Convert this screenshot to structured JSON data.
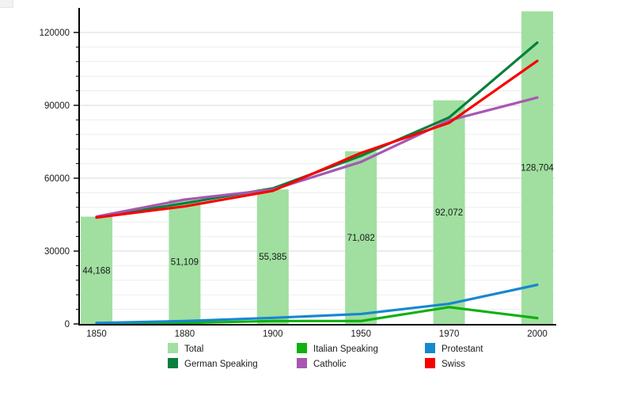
{
  "chart_data": {
    "type": "bar",
    "title": "",
    "xlabel": "",
    "ylabel": "",
    "grid": true,
    "categories": [
      "1850",
      "1880",
      "1900",
      "1950",
      "1970",
      "2000"
    ],
    "series": [
      {
        "name": "Total",
        "type": "bar",
        "color": "#a0dfa0",
        "values": [
          44168,
          51109,
          55385,
          71082,
          92072,
          128704
        ],
        "labels": [
          "44,168",
          "51,109",
          "55,385",
          "71,082",
          "92,072",
          "128,704"
        ]
      },
      {
        "name": "German Speaking",
        "type": "line",
        "color": "#087f3d",
        "values": [
          44000,
          49700,
          55800,
          69200,
          85000,
          115800
        ]
      },
      {
        "name": "Italian Speaking",
        "type": "line",
        "color": "#10b010",
        "values": [
          150,
          400,
          1200,
          1200,
          6900,
          2400
        ]
      },
      {
        "name": "Protestant",
        "type": "line",
        "color": "#1787d0",
        "values": [
          400,
          1200,
          2500,
          4100,
          8300,
          16100
        ]
      },
      {
        "name": "Catholic",
        "type": "line",
        "color": "#a757b2",
        "values": [
          44200,
          51200,
          55300,
          66700,
          83800,
          93200
        ]
      },
      {
        "name": "Swiss",
        "type": "line",
        "color": "#f80000",
        "values": [
          43800,
          48400,
          54800,
          70400,
          82800,
          108300
        ]
      }
    ],
    "y_axis": {
      "min": 0,
      "max": 130000,
      "major_step": 30000,
      "minor_step": 6000,
      "major_tick_labels": [
        "0",
        "30000",
        "60000",
        "90000",
        "120000"
      ]
    },
    "x_axis": {
      "tick_labels": [
        "1850",
        "1880",
        "1900",
        "1950",
        "1970",
        "2000"
      ]
    },
    "legend": {
      "position": "bottom",
      "columns": [
        [
          "Total",
          "German Speaking"
        ],
        [
          "Italian Speaking",
          "Catholic"
        ],
        [
          "Protestant",
          "Swiss"
        ]
      ]
    },
    "style": {
      "grid_minor_color": "#ededed",
      "grid_major_color": "#d9d9d9",
      "axis_color": "#000000",
      "text_color": "#1a1a1a"
    }
  }
}
